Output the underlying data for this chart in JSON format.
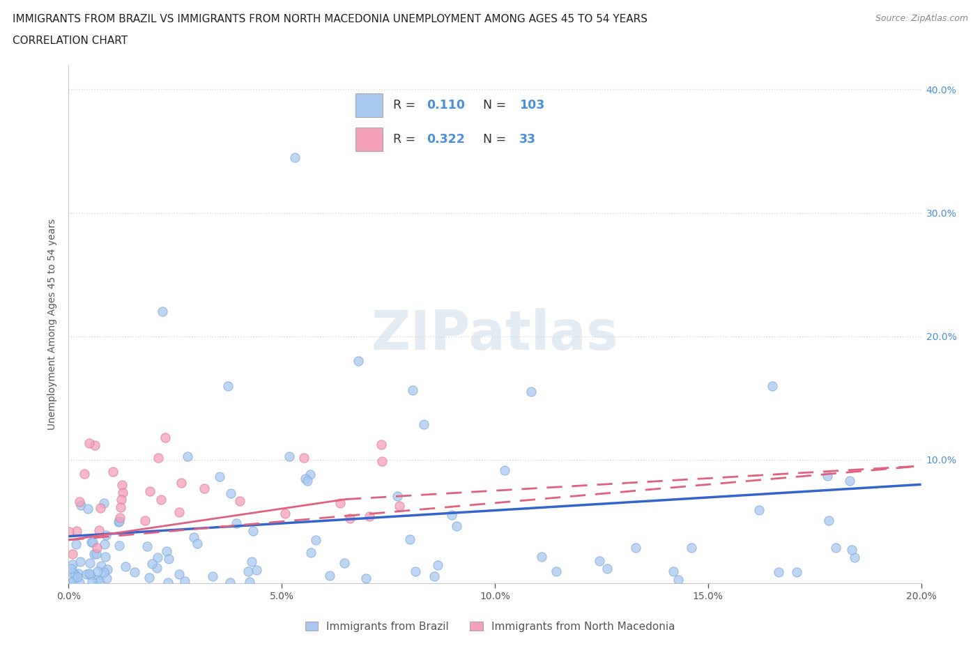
{
  "title_line1": "IMMIGRANTS FROM BRAZIL VS IMMIGRANTS FROM NORTH MACEDONIA UNEMPLOYMENT AMONG AGES 45 TO 54 YEARS",
  "title_line2": "CORRELATION CHART",
  "source": "Source: ZipAtlas.com",
  "ylabel": "Unemployment Among Ages 45 to 54 years",
  "xlim": [
    0.0,
    0.2
  ],
  "ylim": [
    0.0,
    0.42
  ],
  "xticks": [
    0.0,
    0.05,
    0.1,
    0.15,
    0.2
  ],
  "xticklabels": [
    "0.0%",
    "5.0%",
    "10.0%",
    "15.0%",
    "20.0%"
  ],
  "yticks": [
    0.0,
    0.1,
    0.2,
    0.3,
    0.4
  ],
  "yticklabels": [
    "",
    "10.0%",
    "20.0%",
    "30.0%",
    "40.0%"
  ],
  "brazil_R": 0.11,
  "brazil_N": 103,
  "macedonia_R": 0.322,
  "macedonia_N": 33,
  "brazil_color": "#a8c8f0",
  "brazil_edge_color": "#7aaadc",
  "macedonia_color": "#f4a0b8",
  "macedonia_edge_color": "#e07898",
  "brazil_line_color": "#3366cc",
  "macedonia_line_color": "#e06080",
  "watermark": "ZIPatlas",
  "grid_color": "#d8d8d8",
  "background_color": "#ffffff",
  "title_fontsize": 11,
  "axis_fontsize": 10,
  "tick_fontsize": 10,
  "legend_brazil_label": "Immigrants from Brazil",
  "legend_macedonia_label": "Immigrants from North Macedonia",
  "brazil_line_intercept": 0.038,
  "brazil_line_end": 0.08,
  "macedonia_line_intercept": 0.035,
  "macedonia_line_end": 0.095
}
